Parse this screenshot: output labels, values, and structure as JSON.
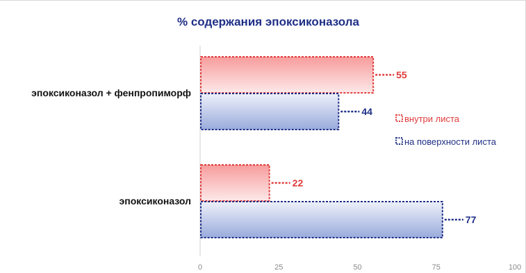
{
  "chart_data": {
    "type": "bar",
    "orientation": "horizontal",
    "title": "% содержания эпоксиконазола",
    "categories": [
      "эпоксиконазол + фенпропиморф",
      "эпоксиконазол"
    ],
    "series": [
      {
        "name": "внутри листа",
        "values": [
          55,
          22
        ],
        "color": "#e03b3b"
      },
      {
        "name": "на поверхности листа",
        "values": [
          44,
          77
        ],
        "color": "#1f2f86"
      }
    ],
    "xlim": [
      0,
      100
    ],
    "xticks": [
      0,
      25,
      50,
      75,
      100
    ],
    "grid": false,
    "legend_position": "right"
  }
}
